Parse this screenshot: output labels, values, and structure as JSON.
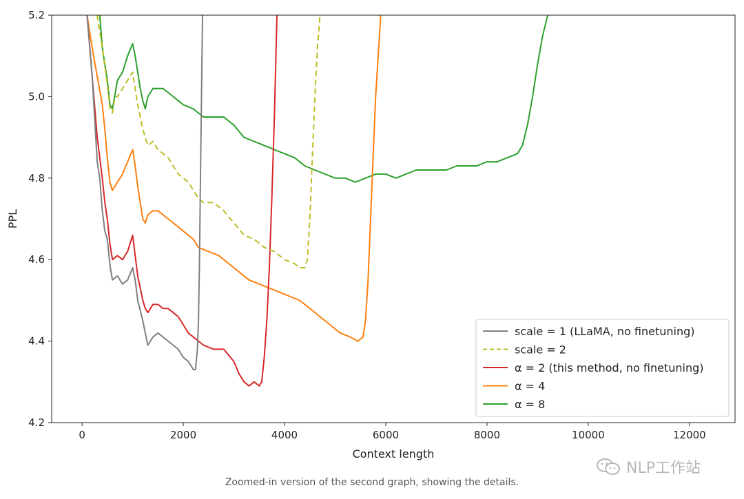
{
  "chart_data": {
    "type": "line",
    "title": "",
    "xlabel": "Context length",
    "ylabel": "PPL",
    "xlim": [
      -600,
      12900
    ],
    "ylim": [
      4.2,
      5.2
    ],
    "xticks": [
      0,
      2000,
      4000,
      6000,
      8000,
      10000,
      12000
    ],
    "xtick_labels": [
      "0",
      "2000",
      "4000",
      "6000",
      "8000",
      "10000",
      "12000"
    ],
    "yticks": [
      4.2,
      4.4,
      4.6,
      4.8,
      5.0,
      5.2
    ],
    "ytick_labels": [
      "4.2",
      "4.4",
      "4.6",
      "4.8",
      "5.0",
      "5.2"
    ],
    "legend_position": "lower-right",
    "series": [
      {
        "name": "scale = 1 (LLaMA, no finetuning)",
        "color": "#7f7f7f",
        "dash": "solid",
        "points": [
          [
            100,
            5.2
          ],
          [
            200,
            5.05
          ],
          [
            280,
            4.88
          ],
          [
            300,
            4.84
          ],
          [
            350,
            4.8
          ],
          [
            400,
            4.72
          ],
          [
            450,
            4.67
          ],
          [
            500,
            4.65
          ],
          [
            540,
            4.6
          ],
          [
            560,
            4.58
          ],
          [
            600,
            4.55
          ],
          [
            700,
            4.56
          ],
          [
            800,
            4.54
          ],
          [
            900,
            4.55
          ],
          [
            1000,
            4.58
          ],
          [
            1050,
            4.55
          ],
          [
            1100,
            4.5
          ],
          [
            1200,
            4.45
          ],
          [
            1250,
            4.42
          ],
          [
            1300,
            4.39
          ],
          [
            1400,
            4.41
          ],
          [
            1500,
            4.42
          ],
          [
            1600,
            4.41
          ],
          [
            1700,
            4.4
          ],
          [
            1800,
            4.39
          ],
          [
            1900,
            4.38
          ],
          [
            2000,
            4.36
          ],
          [
            2100,
            4.35
          ],
          [
            2200,
            4.33
          ],
          [
            2240,
            4.33
          ],
          [
            2280,
            4.38
          ],
          [
            2300,
            4.45
          ],
          [
            2320,
            4.6
          ],
          [
            2340,
            4.8
          ],
          [
            2360,
            5.0
          ],
          [
            2380,
            5.2
          ]
        ]
      },
      {
        "name": "scale = 2",
        "color": "#bcbd22",
        "dash": "dashed",
        "points": [
          [
            300,
            5.2
          ],
          [
            400,
            5.12
          ],
          [
            500,
            5.03
          ],
          [
            550,
            4.97
          ],
          [
            600,
            4.96
          ],
          [
            650,
            5.0
          ],
          [
            700,
            5.0
          ],
          [
            800,
            5.02
          ],
          [
            900,
            5.04
          ],
          [
            1000,
            5.06
          ],
          [
            1050,
            5.02
          ],
          [
            1100,
            4.98
          ],
          [
            1150,
            4.95
          ],
          [
            1200,
            4.92
          ],
          [
            1300,
            4.88
          ],
          [
            1400,
            4.89
          ],
          [
            1500,
            4.87
          ],
          [
            1600,
            4.86
          ],
          [
            1700,
            4.85
          ],
          [
            1800,
            4.83
          ],
          [
            1900,
            4.81
          ],
          [
            2000,
            4.8
          ],
          [
            2100,
            4.79
          ],
          [
            2200,
            4.77
          ],
          [
            2300,
            4.75
          ],
          [
            2400,
            4.74
          ],
          [
            2600,
            4.74
          ],
          [
            2800,
            4.72
          ],
          [
            3000,
            4.69
          ],
          [
            3200,
            4.66
          ],
          [
            3400,
            4.65
          ],
          [
            3600,
            4.63
          ],
          [
            3800,
            4.62
          ],
          [
            4000,
            4.6
          ],
          [
            4200,
            4.59
          ],
          [
            4300,
            4.58
          ],
          [
            4400,
            4.58
          ],
          [
            4450,
            4.6
          ],
          [
            4500,
            4.7
          ],
          [
            4550,
            4.85
          ],
          [
            4600,
            5.0
          ],
          [
            4650,
            5.12
          ],
          [
            4700,
            5.2
          ]
        ]
      },
      {
        "name": "α = 2 (this method, no finetuning)",
        "color": "#d62728",
        "dash": "solid",
        "points": [
          [
            100,
            5.2
          ],
          [
            200,
            5.05
          ],
          [
            300,
            4.9
          ],
          [
            400,
            4.8
          ],
          [
            450,
            4.74
          ],
          [
            500,
            4.7
          ],
          [
            550,
            4.64
          ],
          [
            600,
            4.6
          ],
          [
            700,
            4.61
          ],
          [
            800,
            4.6
          ],
          [
            900,
            4.62
          ],
          [
            1000,
            4.66
          ],
          [
            1050,
            4.61
          ],
          [
            1100,
            4.56
          ],
          [
            1200,
            4.5
          ],
          [
            1250,
            4.48
          ],
          [
            1300,
            4.47
          ],
          [
            1400,
            4.49
          ],
          [
            1500,
            4.49
          ],
          [
            1600,
            4.48
          ],
          [
            1700,
            4.48
          ],
          [
            1800,
            4.47
          ],
          [
            1900,
            4.46
          ],
          [
            2000,
            4.44
          ],
          [
            2100,
            4.42
          ],
          [
            2200,
            4.41
          ],
          [
            2400,
            4.39
          ],
          [
            2600,
            4.38
          ],
          [
            2800,
            4.38
          ],
          [
            3000,
            4.35
          ],
          [
            3100,
            4.32
          ],
          [
            3200,
            4.3
          ],
          [
            3300,
            4.29
          ],
          [
            3400,
            4.3
          ],
          [
            3500,
            4.29
          ],
          [
            3550,
            4.3
          ],
          [
            3600,
            4.36
          ],
          [
            3650,
            4.45
          ],
          [
            3700,
            4.58
          ],
          [
            3750,
            4.75
          ],
          [
            3800,
            4.95
          ],
          [
            3850,
            5.2
          ]
        ]
      },
      {
        "name": "α = 4",
        "color": "#ff7f0e",
        "dash": "solid",
        "points": [
          [
            100,
            5.2
          ],
          [
            200,
            5.12
          ],
          [
            300,
            5.05
          ],
          [
            400,
            4.98
          ],
          [
            450,
            4.92
          ],
          [
            500,
            4.85
          ],
          [
            550,
            4.79
          ],
          [
            600,
            4.77
          ],
          [
            700,
            4.79
          ],
          [
            800,
            4.81
          ],
          [
            900,
            4.84
          ],
          [
            1000,
            4.87
          ],
          [
            1050,
            4.83
          ],
          [
            1100,
            4.78
          ],
          [
            1150,
            4.74
          ],
          [
            1200,
            4.7
          ],
          [
            1250,
            4.69
          ],
          [
            1300,
            4.71
          ],
          [
            1400,
            4.72
          ],
          [
            1500,
            4.72
          ],
          [
            1600,
            4.71
          ],
          [
            1700,
            4.7
          ],
          [
            1800,
            4.69
          ],
          [
            1900,
            4.68
          ],
          [
            2000,
            4.67
          ],
          [
            2100,
            4.66
          ],
          [
            2200,
            4.65
          ],
          [
            2300,
            4.63
          ],
          [
            2500,
            4.62
          ],
          [
            2700,
            4.61
          ],
          [
            2900,
            4.59
          ],
          [
            3100,
            4.57
          ],
          [
            3300,
            4.55
          ],
          [
            3500,
            4.54
          ],
          [
            3700,
            4.53
          ],
          [
            3900,
            4.52
          ],
          [
            4100,
            4.51
          ],
          [
            4300,
            4.5
          ],
          [
            4500,
            4.48
          ],
          [
            4700,
            4.46
          ],
          [
            4900,
            4.44
          ],
          [
            5100,
            4.42
          ],
          [
            5300,
            4.41
          ],
          [
            5450,
            4.4
          ],
          [
            5550,
            4.41
          ],
          [
            5600,
            4.45
          ],
          [
            5650,
            4.55
          ],
          [
            5700,
            4.7
          ],
          [
            5750,
            4.85
          ],
          [
            5800,
            5.0
          ],
          [
            5850,
            5.1
          ],
          [
            5900,
            5.2
          ]
        ]
      },
      {
        "name": "α = 8",
        "color": "#2ca02c",
        "dash": "solid",
        "points": [
          [
            350,
            5.2
          ],
          [
            400,
            5.12
          ],
          [
            500,
            5.04
          ],
          [
            550,
            4.98
          ],
          [
            600,
            4.97
          ],
          [
            700,
            5.04
          ],
          [
            800,
            5.06
          ],
          [
            900,
            5.1
          ],
          [
            1000,
            5.13
          ],
          [
            1050,
            5.1
          ],
          [
            1100,
            5.06
          ],
          [
            1150,
            5.02
          ],
          [
            1200,
            4.99
          ],
          [
            1250,
            4.97
          ],
          [
            1300,
            5.0
          ],
          [
            1400,
            5.02
          ],
          [
            1500,
            5.02
          ],
          [
            1600,
            5.02
          ],
          [
            1700,
            5.01
          ],
          [
            1800,
            5.0
          ],
          [
            1900,
            4.99
          ],
          [
            2000,
            4.98
          ],
          [
            2200,
            4.97
          ],
          [
            2400,
            4.95
          ],
          [
            2600,
            4.95
          ],
          [
            2800,
            4.95
          ],
          [
            3000,
            4.93
          ],
          [
            3200,
            4.9
          ],
          [
            3400,
            4.89
          ],
          [
            3600,
            4.88
          ],
          [
            3800,
            4.87
          ],
          [
            4000,
            4.86
          ],
          [
            4200,
            4.85
          ],
          [
            4400,
            4.83
          ],
          [
            4600,
            4.82
          ],
          [
            4800,
            4.81
          ],
          [
            5000,
            4.8
          ],
          [
            5200,
            4.8
          ],
          [
            5400,
            4.79
          ],
          [
            5600,
            4.8
          ],
          [
            5800,
            4.81
          ],
          [
            6000,
            4.81
          ],
          [
            6200,
            4.8
          ],
          [
            6400,
            4.81
          ],
          [
            6600,
            4.82
          ],
          [
            6800,
            4.82
          ],
          [
            7000,
            4.82
          ],
          [
            7200,
            4.82
          ],
          [
            7400,
            4.83
          ],
          [
            7600,
            4.83
          ],
          [
            7800,
            4.83
          ],
          [
            8000,
            4.84
          ],
          [
            8200,
            4.84
          ],
          [
            8400,
            4.85
          ],
          [
            8600,
            4.86
          ],
          [
            8700,
            4.88
          ],
          [
            8800,
            4.93
          ],
          [
            8900,
            5.0
          ],
          [
            9000,
            5.08
          ],
          [
            9100,
            5.15
          ],
          [
            9200,
            5.2
          ]
        ]
      }
    ]
  },
  "caption": "Zoomed-in version of the second graph, showing the details.",
  "watermark": "NLP工作站"
}
